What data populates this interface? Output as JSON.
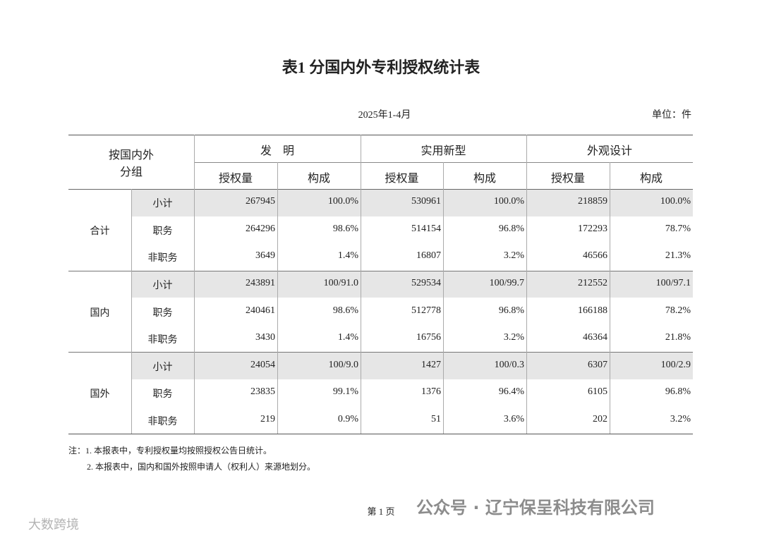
{
  "title": "表1  分国内外专利授权统计表",
  "period": "2025年1-4月",
  "unit": "单位：件",
  "table": {
    "corner": [
      "按国内外",
      "分组"
    ],
    "headers": [
      "发　明",
      "实用新型",
      "外观设计"
    ],
    "subheaders": [
      "授权量",
      "构成",
      "授权量",
      "构成",
      "授权量",
      "构成"
    ],
    "groups": [
      {
        "name": "合计",
        "rows": [
          {
            "label": "小计",
            "cells": [
              "267945",
              "100.0%",
              "530961",
              "100.0%",
              "218859",
              "100.0%"
            ]
          },
          {
            "label": "职务",
            "cells": [
              "264296",
              "98.6%",
              "514154",
              "96.8%",
              "172293",
              "78.7%"
            ]
          },
          {
            "label": "非职务",
            "cells": [
              "3649",
              "1.4%",
              "16807",
              "3.2%",
              "46566",
              "21.3%"
            ]
          }
        ]
      },
      {
        "name": "国内",
        "rows": [
          {
            "label": "小计",
            "cells": [
              "243891",
              "100/91.0",
              "529534",
              "100/99.7",
              "212552",
              "100/97.1"
            ]
          },
          {
            "label": "职务",
            "cells": [
              "240461",
              "98.6%",
              "512778",
              "96.8%",
              "166188",
              "78.2%"
            ]
          },
          {
            "label": "非职务",
            "cells": [
              "3430",
              "1.4%",
              "16756",
              "3.2%",
              "46364",
              "21.8%"
            ]
          }
        ]
      },
      {
        "name": "国外",
        "rows": [
          {
            "label": "小计",
            "cells": [
              "24054",
              "100/9.0",
              "1427",
              "100/0.3",
              "6307",
              "100/2.9"
            ]
          },
          {
            "label": "职务",
            "cells": [
              "23835",
              "99.1%",
              "1376",
              "96.4%",
              "6105",
              "96.8%"
            ]
          },
          {
            "label": "非职务",
            "cells": [
              "219",
              "0.9%",
              "51",
              "3.6%",
              "202",
              "3.2%"
            ]
          }
        ]
      }
    ]
  },
  "notes": [
    "注：1. 本报表中，专利授权量均按照授权公告日统计。",
    "2. 本报表中，国内和国外按照申请人（权利人）来源地划分。"
  ],
  "page": "第 1 页",
  "watermarks": [
    "公众号 · 辽宁保呈科技有限公司",
    "大数跨境"
  ]
}
